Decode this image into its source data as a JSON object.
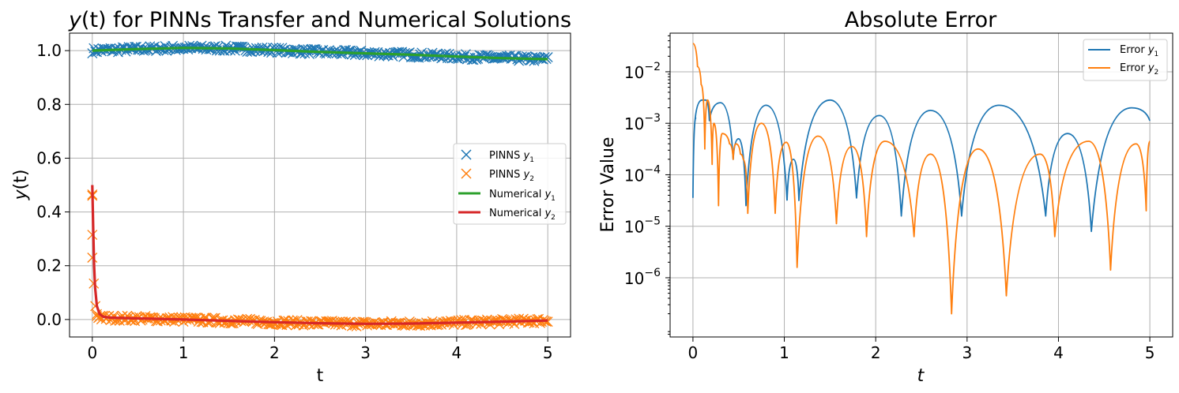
{
  "chart_data": [
    {
      "type": "line",
      "title_prefix": "y",
      "title_paren": "(t)",
      "title_rest": " for PINNs Transfer and Numerical Solutions",
      "xlabel": "t",
      "ylabel_italic": "y",
      "ylabel_rest": "(t)",
      "xlim": [
        -0.25,
        5.25
      ],
      "ylim": [
        -0.065,
        1.065
      ],
      "xticks": [
        0,
        1,
        2,
        3,
        4,
        5
      ],
      "xtick_labels": [
        "0",
        "1",
        "2",
        "3",
        "4",
        "5"
      ],
      "yticks": [
        0.0,
        0.2,
        0.4,
        0.6,
        0.8,
        1.0
      ],
      "ytick_labels": [
        "0.0",
        "0.2",
        "0.4",
        "0.6",
        "0.8",
        "1.0"
      ],
      "grid": true,
      "legend_position": "center-right",
      "series": [
        {
          "name": "PINNS",
          "sub": "1",
          "kind": "marker-x",
          "color": "#1f77b4",
          "x": [
            0,
            0.5,
            1.0,
            1.5,
            2.0,
            2.5,
            3.0,
            3.5,
            4.0,
            4.5,
            5.0
          ],
          "y": [
            1.0,
            1.006,
            1.01,
            1.008,
            1.002,
            0.995,
            0.99,
            0.985,
            0.978,
            0.972,
            0.968
          ]
        },
        {
          "name": "PINNS",
          "sub": "2",
          "kind": "marker-x",
          "color": "#ff7f0e",
          "x": [
            0,
            0.005,
            0.01,
            0.02,
            0.05,
            0.1,
            0.5,
            1.0,
            1.5,
            2.0,
            2.5,
            3.0,
            3.5,
            4.0,
            4.5,
            5.0
          ],
          "y": [
            0.465,
            0.315,
            0.23,
            0.08,
            0.015,
            0.006,
            0.004,
            0.0,
            -0.005,
            -0.01,
            -0.014,
            -0.016,
            -0.015,
            -0.012,
            -0.008,
            -0.004
          ]
        },
        {
          "name": "Numerical",
          "sub": "1",
          "kind": "line",
          "color": "#2ca02c",
          "x": [
            0,
            0.5,
            1.0,
            1.5,
            2.0,
            2.5,
            3.0,
            3.5,
            4.0,
            4.5,
            5.0
          ],
          "y": [
            1.0,
            1.006,
            1.01,
            1.008,
            1.002,
            0.995,
            0.99,
            0.985,
            0.978,
            0.972,
            0.968
          ]
        },
        {
          "name": "Numerical",
          "sub": "2",
          "kind": "line",
          "color": "#d62728",
          "x": [
            0,
            0.01,
            0.02,
            0.03,
            0.05,
            0.08,
            0.12,
            0.2,
            0.5,
            1.0,
            1.5,
            2.0,
            2.5,
            3.0,
            3.5,
            4.0,
            4.5,
            5.0
          ],
          "y": [
            0.5,
            0.33,
            0.2,
            0.12,
            0.05,
            0.02,
            0.01,
            0.007,
            0.004,
            0.0,
            -0.005,
            -0.01,
            -0.014,
            -0.016,
            -0.015,
            -0.012,
            -0.008,
            -0.004
          ]
        }
      ]
    },
    {
      "type": "line",
      "title": "Absolute Error",
      "xlabel": "t",
      "ylabel": "Error Value",
      "yscale": "log",
      "xlim": [
        -0.25,
        5.25
      ],
      "ylim_exp": [
        -7.15,
        -1.25
      ],
      "xticks": [
        0,
        1,
        2,
        3,
        4,
        5
      ],
      "xtick_labels": [
        "0",
        "1",
        "2",
        "3",
        "4",
        "5"
      ],
      "yticks_exp": [
        -6,
        -5,
        -4,
        -3,
        -2
      ],
      "ytick_base": "10",
      "ytick_exponents": [
        "−6",
        "−5",
        "−4",
        "−3",
        "−2"
      ],
      "grid": true,
      "legend_position": "top-right",
      "series": [
        {
          "name": "Error",
          "sub": "1",
          "color": "#1f77b4",
          "lobes": [
            [
              0.0,
              -4.45,
              0.03,
              -2.9,
              0.02,
              -3.0,
              0.1,
              -2.55,
              0.14,
              -2.55,
              0.18,
              -2.95,
              0.3,
              -2.6,
              0.44,
              -3.7,
              0.5,
              -3.3,
              0.58,
              -4.6,
              0.8,
              -2.65,
              1.03,
              -4.5
            ],
            [
              1.03,
              -4.5,
              1.1,
              -3.7,
              1.16,
              -4.5,
              1.5,
              -2.55,
              1.79,
              -4.45,
              2.04,
              -2.85,
              2.28,
              -4.8,
              2.6,
              -2.75,
              2.94,
              -4.8,
              3.35,
              -2.65,
              3.86,
              -4.8,
              4.1,
              -3.2,
              4.36,
              -5.1,
              4.8,
              -2.7,
              5.0,
              -2.95
            ]
          ]
        },
        {
          "name": "Error",
          "sub": "2",
          "color": "#ff7f0e",
          "lobes": [
            [
              0.0,
              -1.45,
              0.05,
              -1.9,
              0.09,
              -2.25,
              0.13,
              -3.5,
              0.16,
              -2.55,
              0.21,
              -3.8,
              0.23,
              -3.0,
              0.28,
              -4.6,
              0.32,
              -3.2,
              0.4,
              -3.4,
              0.44,
              -3.7,
              0.47,
              -3.4,
              0.52,
              -3.6,
              0.55,
              -3.7,
              0.6,
              -4.75,
              0.75,
              -3.0,
              0.9,
              -4.75,
              1.02,
              -3.37,
              1.14,
              -5.8,
              1.37,
              -3.25,
              1.57,
              -4.95,
              1.74,
              -3.45,
              1.9,
              -5.2,
              2.1,
              -3.35,
              2.42,
              -5.2,
              2.6,
              -3.6,
              2.83,
              -6.7,
              3.12,
              -3.5,
              3.43,
              -6.35,
              3.8,
              -3.6,
              3.96,
              -5.2,
              4.33,
              -3.35,
              4.57,
              -5.85,
              4.85,
              -3.4,
              4.96,
              -4.7,
              5.0,
              -3.35
            ]
          ]
        }
      ]
    }
  ]
}
